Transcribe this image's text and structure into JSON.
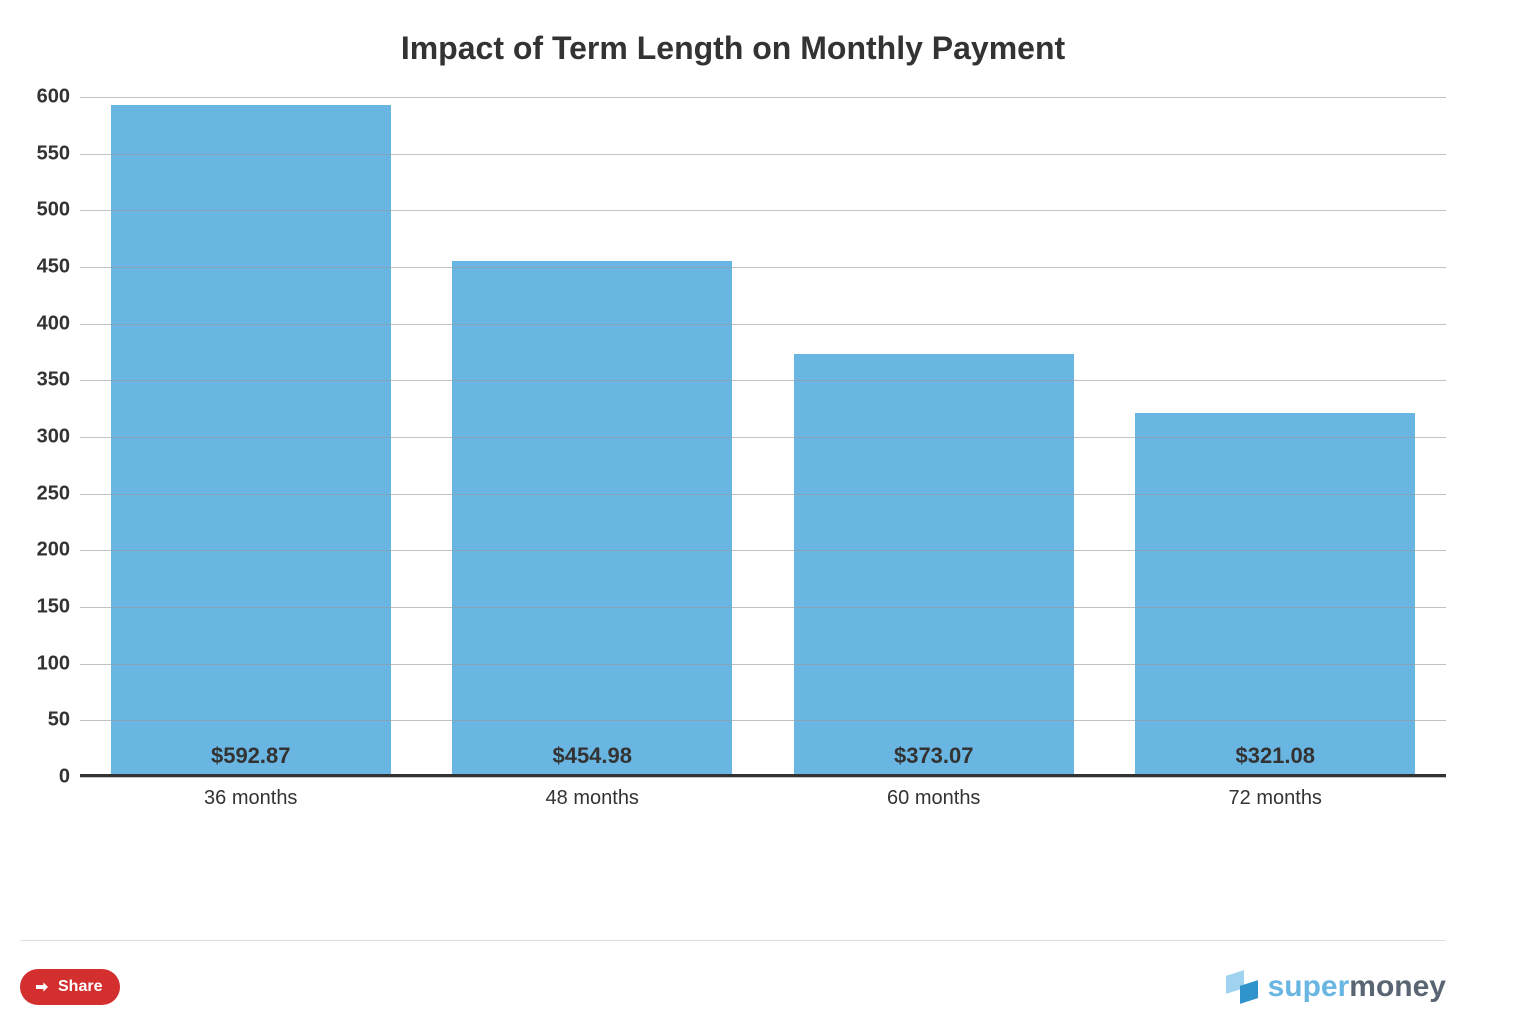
{
  "chart": {
    "type": "bar",
    "title": "Impact of Term Length on Monthly Payment",
    "title_fontsize": 32,
    "title_color": "#333333",
    "categories": [
      "36 months",
      "48 months",
      "60 months",
      "72 months"
    ],
    "values": [
      592.87,
      454.98,
      373.07,
      321.08
    ],
    "value_labels": [
      "$592.87",
      "$454.98",
      "$373.07",
      "$321.08"
    ],
    "bar_color": "#6ab6e2",
    "bar_width_pct": 82,
    "ylim": [
      0,
      600
    ],
    "ytick_step": 50,
    "yticks": [
      0,
      50,
      100,
      150,
      200,
      250,
      300,
      350,
      400,
      450,
      500,
      550,
      600
    ],
    "ytick_fontsize": 20,
    "xtick_fontsize": 20,
    "value_label_fontsize": 22,
    "grid_color": "#999999",
    "axis_line_color": "#333333",
    "background_color": "#ffffff"
  },
  "footer": {
    "share_label": "Share",
    "share_button_bg": "#d32f2f",
    "share_button_fg": "#ffffff",
    "brand_part1": "super",
    "brand_part2": "money",
    "brand_color1": "#6ab6e2",
    "brand_color2": "#5a6573"
  }
}
